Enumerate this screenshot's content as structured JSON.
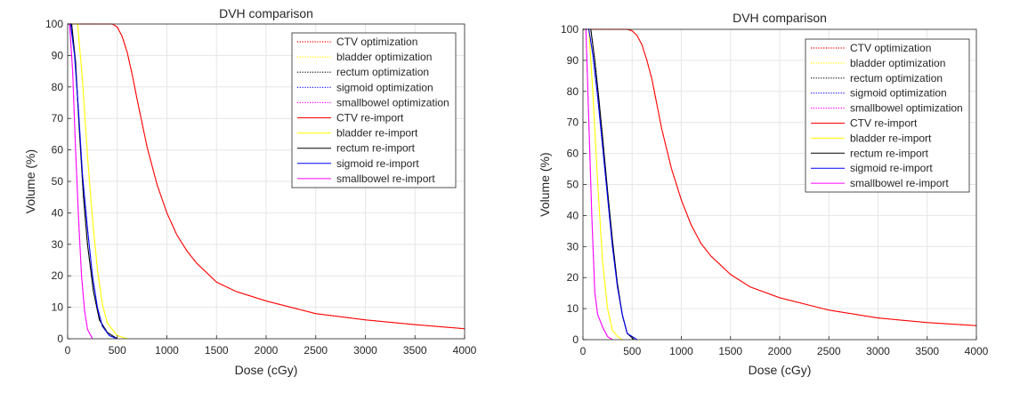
{
  "chart_data": [
    {
      "type": "line",
      "title": "DVH comparison",
      "xlabel": "Dose (cGy)",
      "ylabel": "Volume (%)",
      "xlim": [
        0,
        4000
      ],
      "ylim": [
        0,
        100
      ],
      "xticks": [
        0,
        500,
        1000,
        1500,
        2000,
        2500,
        3000,
        3500,
        4000
      ],
      "yticks": [
        0,
        10,
        20,
        30,
        40,
        50,
        60,
        70,
        80,
        90,
        100
      ],
      "grid": true,
      "legend_position": "top-right",
      "series": [
        {
          "name": "CTV optimization",
          "color": "#ff0000",
          "style": "dotted",
          "x": [
            0,
            450,
            500,
            550,
            600,
            650,
            700,
            800,
            900,
            1000,
            1100,
            1200,
            1300,
            1500,
            1700,
            2000,
            2500,
            3000,
            3500,
            4000
          ],
          "y": [
            100,
            100,
            99,
            96,
            91,
            84,
            76,
            61,
            49,
            40,
            33,
            28,
            24,
            18,
            15,
            12,
            8,
            6,
            4.5,
            3.2
          ]
        },
        {
          "name": "bladder optimization",
          "color": "#ffff00",
          "style": "dotted",
          "x": [
            0,
            100,
            150,
            200,
            250,
            300,
            350,
            400,
            500,
            600
          ],
          "y": [
            100,
            100,
            82,
            58,
            38,
            22,
            11,
            5,
            1,
            0
          ]
        },
        {
          "name": "rectum optimization",
          "color": "#000000",
          "style": "dotted",
          "x": [
            0,
            40,
            80,
            120,
            160,
            200,
            260,
            320,
            400,
            500
          ],
          "y": [
            100,
            100,
            88,
            65,
            45,
            30,
            15,
            6,
            2,
            0
          ]
        },
        {
          "name": "sigmoid optimization",
          "color": "#0000ff",
          "style": "dotted",
          "x": [
            0,
            30,
            70,
            110,
            150,
            200,
            250,
            300,
            350,
            420,
            500
          ],
          "y": [
            100,
            100,
            90,
            72,
            52,
            35,
            20,
            10,
            4,
            1,
            0
          ]
        },
        {
          "name": "smallbowel optimization",
          "color": "#ff00ff",
          "style": "dotted",
          "x": [
            0,
            20,
            50,
            80,
            110,
            140,
            170,
            200,
            250
          ],
          "y": [
            100,
            100,
            85,
            60,
            38,
            20,
            9,
            3,
            0
          ]
        },
        {
          "name": "CTV re-import",
          "color": "#ff0000",
          "style": "solid",
          "x": [
            0,
            450,
            500,
            550,
            600,
            650,
            700,
            800,
            900,
            1000,
            1100,
            1200,
            1300,
            1500,
            1700,
            2000,
            2500,
            3000,
            3500,
            4000
          ],
          "y": [
            100,
            100,
            99,
            96,
            91,
            84,
            76,
            61,
            49,
            40,
            33,
            28,
            24,
            18,
            15,
            12,
            8,
            6,
            4.5,
            3.2
          ]
        },
        {
          "name": "bladder re-import",
          "color": "#ffff00",
          "style": "solid",
          "x": [
            0,
            100,
            150,
            200,
            250,
            300,
            350,
            400,
            500,
            600
          ],
          "y": [
            100,
            100,
            82,
            58,
            38,
            22,
            11,
            5,
            1,
            0
          ]
        },
        {
          "name": "rectum re-import",
          "color": "#000000",
          "style": "solid",
          "x": [
            0,
            40,
            80,
            120,
            160,
            200,
            260,
            320,
            400,
            500
          ],
          "y": [
            100,
            100,
            88,
            65,
            45,
            30,
            15,
            6,
            2,
            0
          ]
        },
        {
          "name": "sigmoid re-import",
          "color": "#0000ff",
          "style": "solid",
          "x": [
            0,
            30,
            70,
            110,
            150,
            200,
            250,
            300,
            350,
            420,
            500
          ],
          "y": [
            100,
            100,
            90,
            72,
            52,
            35,
            20,
            10,
            4,
            1,
            0
          ]
        },
        {
          "name": "smallbowel re-import",
          "color": "#ff00ff",
          "style": "solid",
          "x": [
            0,
            20,
            50,
            80,
            110,
            140,
            170,
            200,
            250
          ],
          "y": [
            100,
            100,
            85,
            60,
            38,
            20,
            9,
            3,
            0
          ]
        }
      ]
    },
    {
      "type": "line",
      "title": "DVH comparison",
      "xlabel": "Dose (cGy)",
      "ylabel": "Volume (%)",
      "xlim": [
        0,
        4000
      ],
      "ylim": [
        0,
        100
      ],
      "xticks": [
        0,
        500,
        1000,
        1500,
        2000,
        2500,
        3000,
        3500,
        4000
      ],
      "yticks": [
        0,
        10,
        20,
        30,
        40,
        50,
        60,
        70,
        80,
        90,
        100
      ],
      "grid": true,
      "legend_position": "top-right",
      "series": [
        {
          "name": "CTV optimization",
          "color": "#ff0000",
          "style": "dotted",
          "x": [
            0,
            450,
            500,
            550,
            600,
            650,
            700,
            800,
            900,
            1000,
            1100,
            1200,
            1300,
            1500,
            1700,
            2000,
            2500,
            3000,
            3500,
            4000
          ],
          "y": [
            100,
            100,
            99.5,
            98,
            95,
            90,
            84,
            68,
            55,
            45,
            37,
            31,
            27,
            21,
            17,
            13.5,
            9.5,
            7,
            5.5,
            4.5
          ]
        },
        {
          "name": "bladder optimization",
          "color": "#ffff00",
          "style": "dotted",
          "x": [
            0,
            60,
            100,
            150,
            200,
            250,
            300,
            350,
            400
          ],
          "y": [
            100,
            100,
            80,
            50,
            25,
            10,
            3,
            1,
            0
          ]
        },
        {
          "name": "rectum optimization",
          "color": "#000000",
          "style": "dotted",
          "x": [
            0,
            80,
            120,
            160,
            200,
            250,
            300,
            350,
            400,
            450,
            520
          ],
          "y": [
            100,
            100,
            90,
            78,
            65,
            48,
            32,
            18,
            8,
            2,
            0
          ]
        },
        {
          "name": "sigmoid optimization",
          "color": "#0000ff",
          "style": "dotted",
          "x": [
            0,
            60,
            100,
            150,
            200,
            250,
            300,
            350,
            400,
            450,
            550
          ],
          "y": [
            100,
            100,
            92,
            78,
            62,
            46,
            30,
            17,
            8,
            2,
            0
          ]
        },
        {
          "name": "smallbowel optimization",
          "color": "#ff00ff",
          "style": "dotted",
          "x": [
            0,
            30,
            60,
            90,
            120,
            150,
            200,
            250,
            300
          ],
          "y": [
            100,
            100,
            70,
            40,
            15,
            8,
            4,
            1,
            0
          ]
        },
        {
          "name": "CTV re-import",
          "color": "#ff0000",
          "style": "solid",
          "x": [
            0,
            450,
            500,
            550,
            600,
            650,
            700,
            800,
            900,
            1000,
            1100,
            1200,
            1300,
            1500,
            1700,
            2000,
            2500,
            3000,
            3500,
            4000
          ],
          "y": [
            100,
            100,
            99.5,
            98,
            95,
            90,
            84,
            68,
            55,
            45,
            37,
            31,
            27,
            21,
            17,
            13.5,
            9.5,
            7,
            5.5,
            4.5
          ]
        },
        {
          "name": "bladder re-import",
          "color": "#ffff00",
          "style": "solid",
          "x": [
            0,
            60,
            100,
            150,
            200,
            250,
            300,
            350,
            400
          ],
          "y": [
            100,
            100,
            80,
            50,
            25,
            10,
            3,
            1,
            0
          ]
        },
        {
          "name": "rectum re-import",
          "color": "#000000",
          "style": "solid",
          "x": [
            0,
            80,
            120,
            160,
            200,
            250,
            300,
            350,
            400,
            450,
            520
          ],
          "y": [
            100,
            100,
            90,
            78,
            65,
            48,
            32,
            18,
            8,
            2,
            0
          ]
        },
        {
          "name": "sigmoid re-import",
          "color": "#0000ff",
          "style": "solid",
          "x": [
            0,
            60,
            100,
            150,
            200,
            250,
            300,
            350,
            400,
            450,
            550
          ],
          "y": [
            100,
            100,
            92,
            78,
            62,
            46,
            30,
            17,
            8,
            2,
            0
          ]
        },
        {
          "name": "smallbowel re-import",
          "color": "#ff00ff",
          "style": "solid",
          "x": [
            0,
            30,
            60,
            90,
            120,
            150,
            200,
            250,
            300
          ],
          "y": [
            100,
            100,
            70,
            40,
            15,
            8,
            4,
            1,
            0
          ]
        }
      ]
    }
  ]
}
